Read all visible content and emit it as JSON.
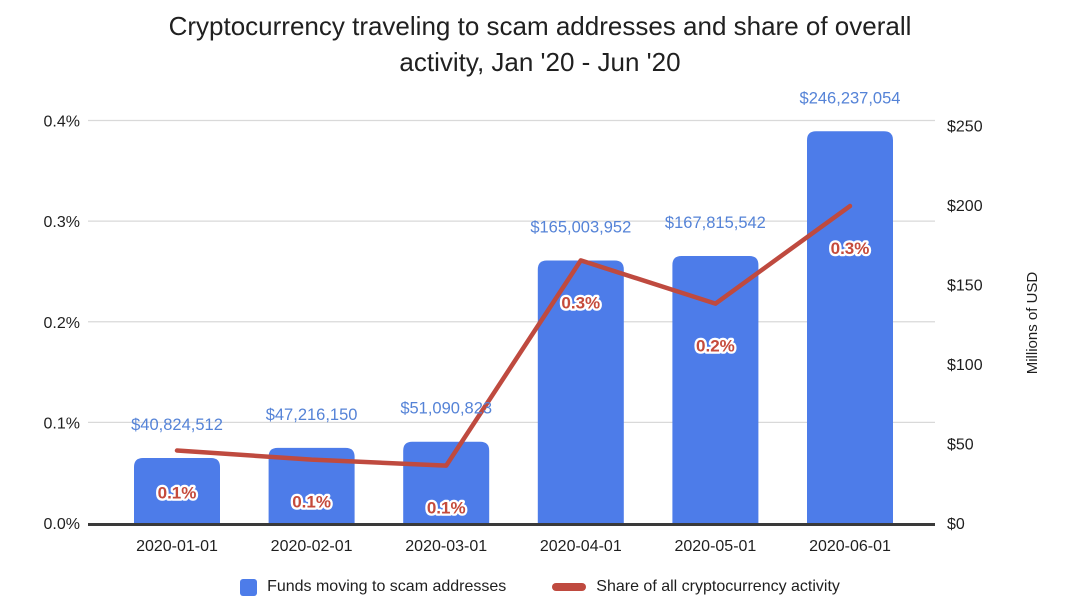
{
  "title": {
    "line1": "Cryptocurrency traveling to scam addresses and share of overall",
    "line2": "activity, Jan '20 - Jun '20"
  },
  "chart_data": {
    "type": "bar",
    "subtype": "combo-bar-line",
    "categories": [
      "2020-01-01",
      "2020-02-01",
      "2020-03-01",
      "2020-04-01",
      "2020-05-01",
      "2020-06-01"
    ],
    "series": [
      {
        "name": "Funds moving to scam addresses",
        "type": "bar",
        "axis": "right",
        "color": "#4d7ce9",
        "values_usd": [
          40824512,
          47216150,
          51090823,
          165003952,
          167815542,
          246237054
        ],
        "values_millions": [
          40.824512,
          47.21615,
          51.090823,
          165.003952,
          167.815542,
          246.237054
        ],
        "data_labels": [
          "$40,824,512",
          "$47,216,150",
          "$51,090,823",
          "$165,003,952",
          "$167,815,542",
          "$246,237,054"
        ],
        "label_color": "#5583d7"
      },
      {
        "name": "Share of all cryptocurrency activity",
        "type": "line",
        "axis": "left",
        "color": "#bf4a3f",
        "values_percent": [
          0.072,
          0.063,
          0.057,
          0.261,
          0.218,
          0.315
        ],
        "data_labels": [
          "0.1%",
          "0.1%",
          "0.1%",
          "0.3%",
          "0.2%",
          "0.3%"
        ],
        "label_color": "#c54b3c"
      }
    ],
    "left_axis": {
      "ticks": [
        0,
        0.1,
        0.2,
        0.3,
        0.4
      ],
      "tick_labels": [
        "0.0%",
        "0.1%",
        "0.2%",
        "0.3%",
        "0.4%"
      ],
      "range_percent": [
        0,
        0.4
      ]
    },
    "right_axis": {
      "title": "Millions of USD",
      "ticks": [
        0,
        50,
        100,
        150,
        200,
        250
      ],
      "tick_labels": [
        "$0",
        "$50",
        "$100",
        "$150",
        "$200",
        "$250"
      ],
      "range_millions": [
        0,
        253
      ]
    },
    "grid": true,
    "legend_position": "bottom"
  },
  "legend": {
    "items": [
      {
        "label": "Funds moving to scam addresses",
        "marker": "square",
        "color": "#4d7ce9"
      },
      {
        "label": "Share of all cryptocurrency activity",
        "marker": "dash",
        "color": "#bf4a3f"
      }
    ]
  },
  "colors": {
    "grid": "#d9d9d9",
    "axis_line": "#3a3a3a",
    "text": "#1f1f1f",
    "background": "#ffffff"
  }
}
